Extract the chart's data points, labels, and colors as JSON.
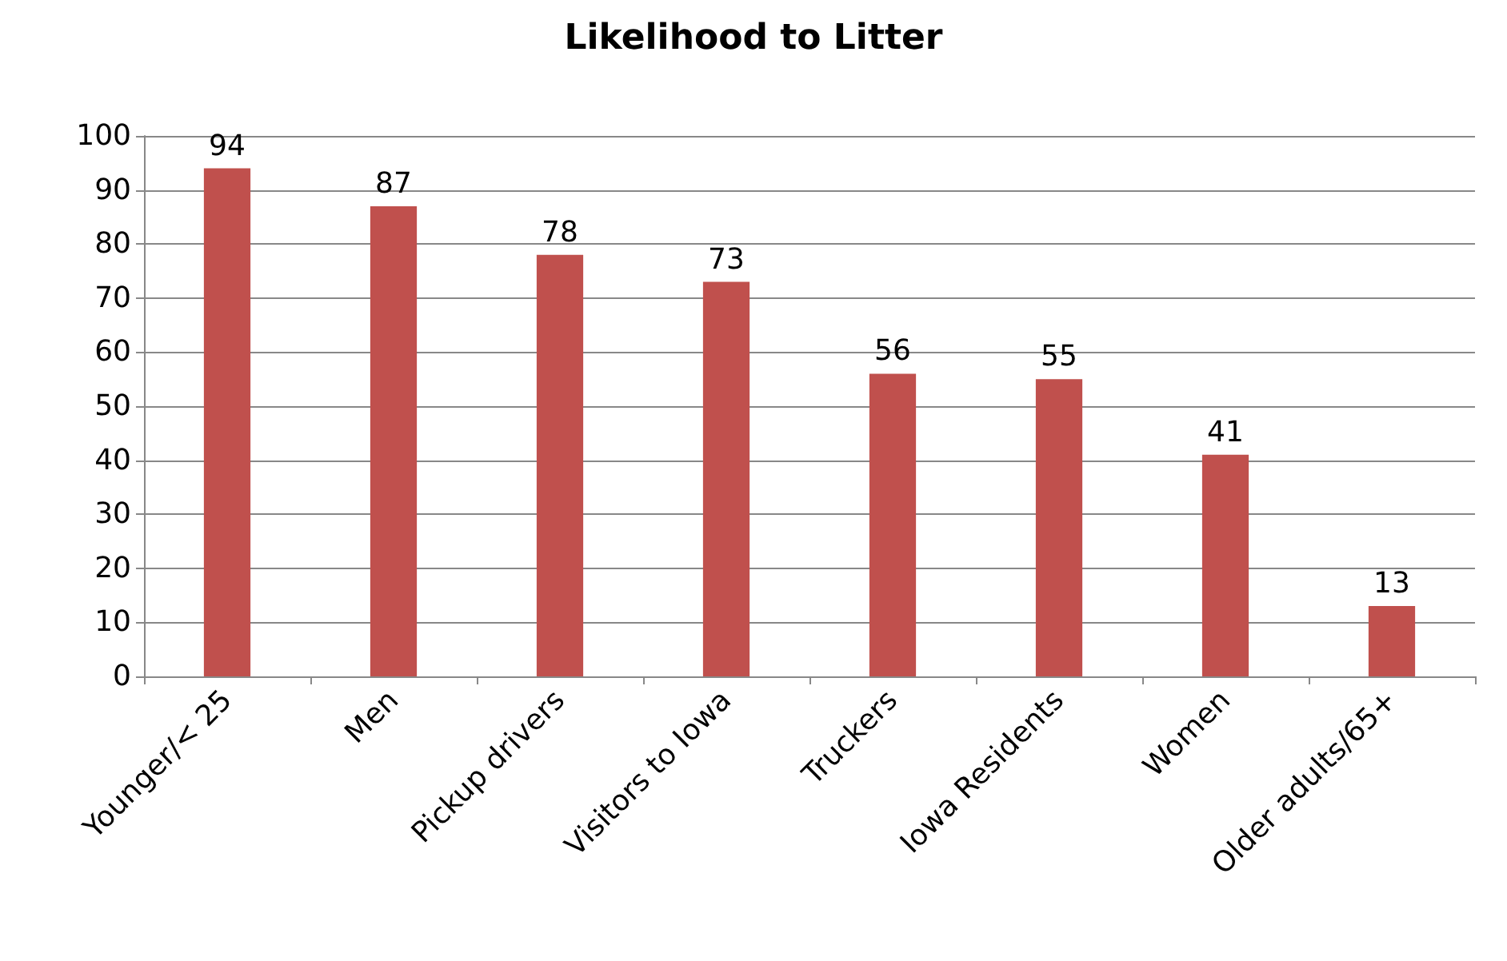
{
  "chart_data": {
    "type": "bar",
    "title": "Likelihood to Litter",
    "categories": [
      "Younger/< 25",
      "Men",
      "Pickup drivers",
      "Visitors to Iowa",
      "Truckers",
      "Iowa Residents",
      "Women",
      "Older adults/65+"
    ],
    "values": [
      94,
      87,
      78,
      73,
      56,
      55,
      41,
      13
    ],
    "color": "#c0504d",
    "ylim": [
      0,
      100
    ],
    "yticks": [
      0,
      10,
      20,
      30,
      40,
      50,
      60,
      70,
      80,
      90,
      100
    ],
    "grid": "y",
    "data_labels": true
  }
}
